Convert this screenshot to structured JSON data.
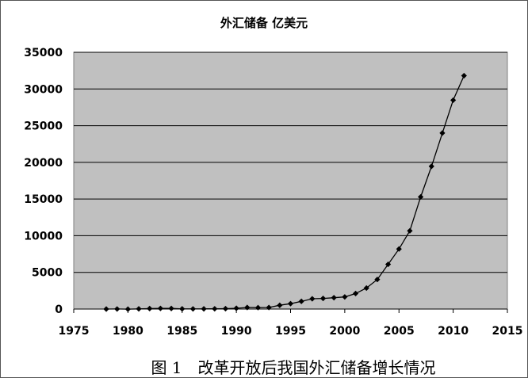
{
  "chart_data": {
    "type": "line",
    "title": "外汇储备 亿美元",
    "xlabel": "",
    "ylabel": "",
    "xlim": [
      1975,
      2015
    ],
    "ylim": [
      0,
      35000
    ],
    "xticks": [
      1975,
      1980,
      1985,
      1990,
      1995,
      2000,
      2005,
      2010,
      2015
    ],
    "yticks": [
      0,
      5000,
      10000,
      15000,
      20000,
      25000,
      30000,
      35000
    ],
    "grid": "horizontal",
    "legend": "none",
    "plot_background": "#c0c0c0",
    "line_color": "#000000",
    "series": [
      {
        "x": [
          1978,
          1979,
          1980,
          1981,
          1982,
          1983,
          1984,
          1985,
          1986,
          1987,
          1988,
          1989,
          1990,
          1991,
          1992,
          1993,
          1994,
          1995,
          1996,
          1997,
          1998,
          1999,
          2000,
          2001,
          2002,
          2003,
          2004,
          2005,
          2006,
          2007,
          2008,
          2009,
          2010,
          2011
        ],
        "values": [
          2,
          8,
          -13,
          27,
          70,
          89,
          82,
          26,
          21,
          29,
          34,
          56,
          111,
          217,
          194,
          212,
          516,
          736,
          1050,
          1399,
          1450,
          1547,
          1656,
          2122,
          2864,
          4033,
          6099,
          8189,
          10663,
          15282,
          19460,
          23992,
          28473,
          31811
        ]
      }
    ]
  },
  "caption": "图 1　改革开放后我国外汇储备增长情况"
}
